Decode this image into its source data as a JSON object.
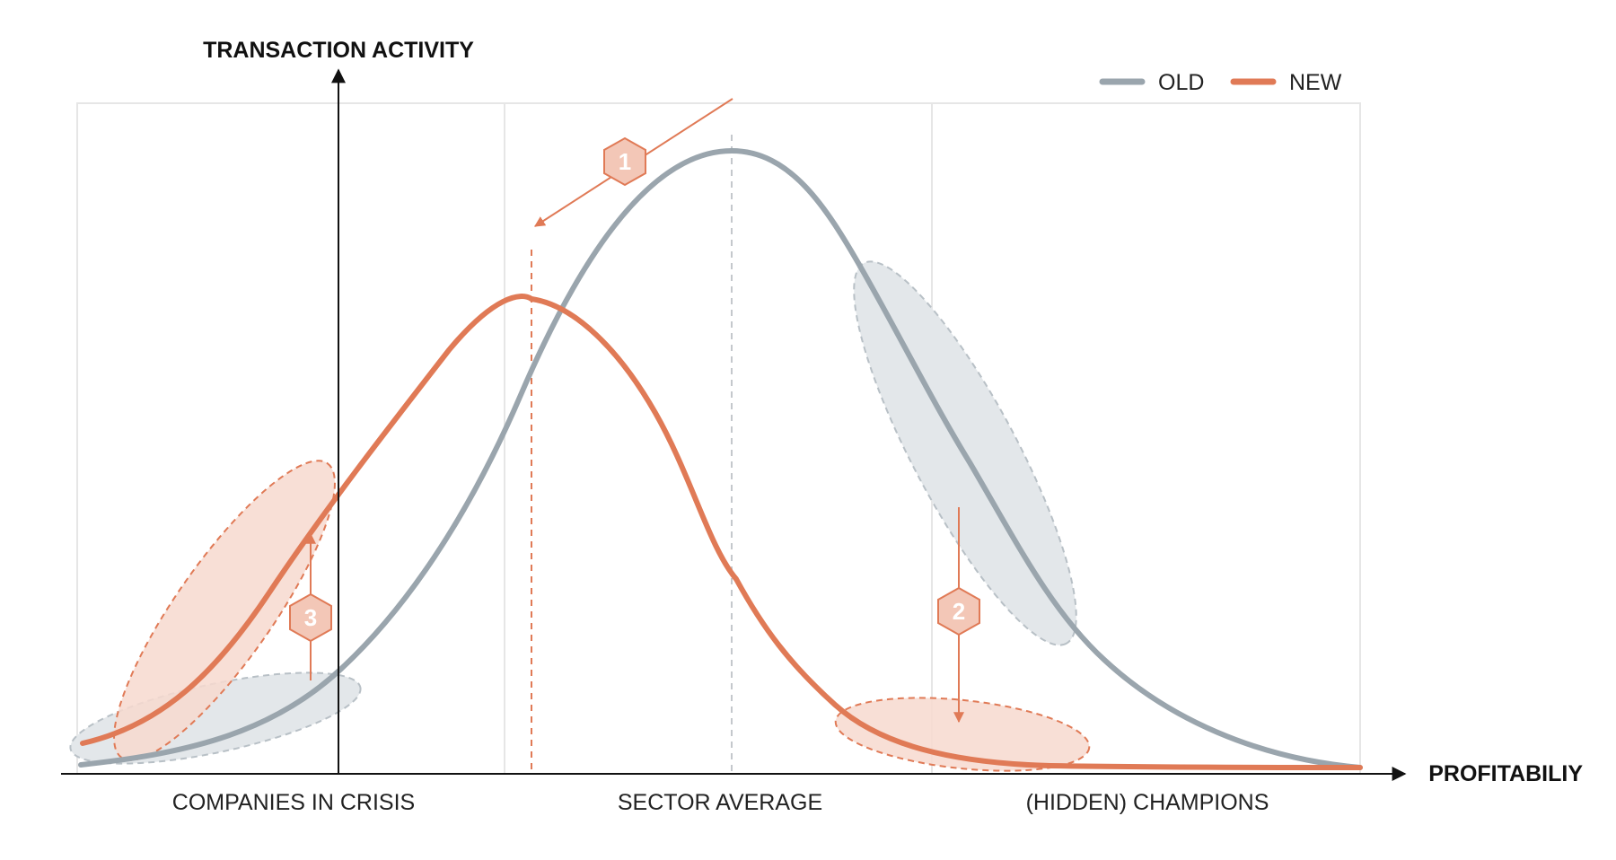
{
  "axes": {
    "y_title": "TRANSACTION ACTIVITY",
    "x_title": "PROFITABILIY"
  },
  "regions": [
    "COMPANIES IN CRISIS",
    "SECTOR AVERAGE",
    "(HIDDEN) CHAMPIONS"
  ],
  "legend": {
    "old": "OLD",
    "new": "NEW"
  },
  "markers": {
    "m1": "1",
    "m2": "2",
    "m3": "3"
  },
  "colors": {
    "old": "#9aa5ad",
    "new": "#e07a56",
    "old_fill": "#e3e7ea",
    "new_fill": "#f7d9cf",
    "marker_fill": "#f3c7b7",
    "grid": "#e6e6e6",
    "axis": "#111111"
  }
}
